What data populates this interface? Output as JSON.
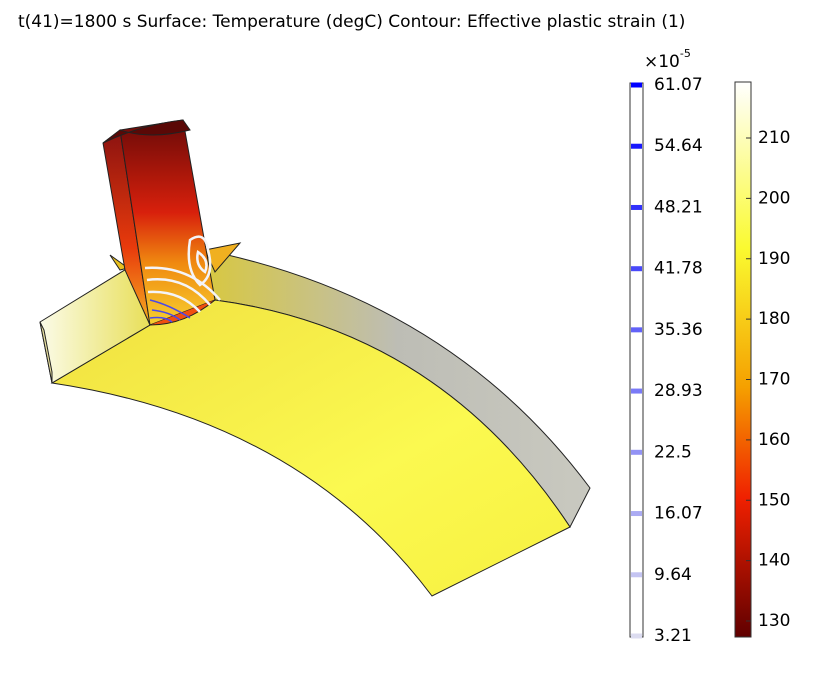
{
  "title": "t(41)=1800 s  Surface: Temperature (degC)  Contour: Effective plastic strain (1)",
  "contour_legend": {
    "multiplier": "×10",
    "exponent": "-5",
    "ticks": [
      61.07,
      54.64,
      48.21,
      41.78,
      35.36,
      28.93,
      22.5,
      16.07,
      9.64,
      3.21
    ]
  },
  "surface_legend": {
    "ticks": [
      210,
      200,
      190,
      180,
      170,
      160,
      150,
      140,
      130
    ]
  }
}
